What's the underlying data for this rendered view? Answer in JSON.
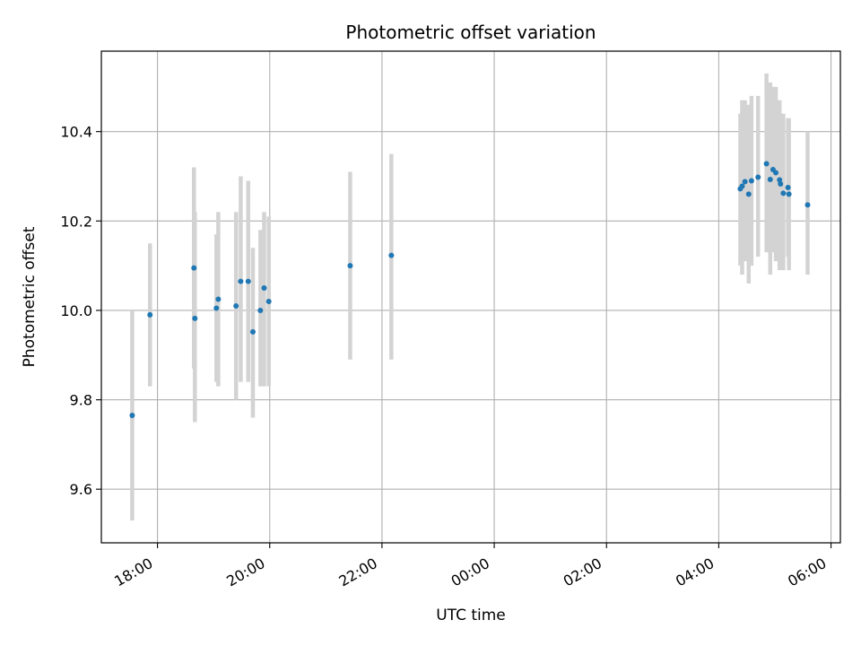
{
  "chart_data": {
    "type": "scatter",
    "title": "Photometric offset variation",
    "xlabel": "UTC time",
    "ylabel": "Photometric offset",
    "x_axis": {
      "kind": "time",
      "start": "17:00",
      "end": "30:10",
      "ticks": [
        "18:00",
        "20:00",
        "22:00",
        "00:00",
        "02:00",
        "04:00",
        "06:00"
      ],
      "tick_hours": [
        18,
        20,
        22,
        24,
        26,
        28,
        30
      ]
    },
    "y_axis": {
      "ylim": [
        9.48,
        10.58
      ],
      "ticks": [
        "9.6",
        "9.8",
        "10.0",
        "10.2",
        "10.4"
      ],
      "tick_values": [
        9.6,
        9.8,
        10.0,
        10.2,
        10.4
      ]
    },
    "grid": true,
    "colors": {
      "point": "#1f77b4",
      "errorbar": "#d3d3d3",
      "grid": "#b0b0b0"
    },
    "points": [
      {
        "t": "17:33",
        "y": 9.765,
        "lo": 9.53,
        "hi": 10.0
      },
      {
        "t": "17:52",
        "y": 9.99,
        "lo": 9.83,
        "hi": 10.15
      },
      {
        "t": "18:39",
        "y": 10.095,
        "lo": 9.87,
        "hi": 10.32
      },
      {
        "t": "18:40",
        "y": 9.982,
        "lo": 9.75,
        "hi": 10.22
      },
      {
        "t": "19:03",
        "y": 10.005,
        "lo": 9.84,
        "hi": 10.17
      },
      {
        "t": "19:05",
        "y": 10.025,
        "lo": 9.83,
        "hi": 10.22
      },
      {
        "t": "19:24",
        "y": 10.01,
        "lo": 9.8,
        "hi": 10.22
      },
      {
        "t": "19:29",
        "y": 10.065,
        "lo": 9.84,
        "hi": 10.3
      },
      {
        "t": "19:37",
        "y": 10.065,
        "lo": 9.84,
        "hi": 10.29
      },
      {
        "t": "19:42",
        "y": 9.952,
        "lo": 9.76,
        "hi": 10.14
      },
      {
        "t": "19:50",
        "y": 10.0,
        "lo": 9.83,
        "hi": 10.18
      },
      {
        "t": "19:54",
        "y": 10.05,
        "lo": 9.83,
        "hi": 10.22
      },
      {
        "t": "19:59",
        "y": 10.02,
        "lo": 9.83,
        "hi": 10.21
      },
      {
        "t": "21:26",
        "y": 10.1,
        "lo": 9.89,
        "hi": 10.31
      },
      {
        "t": "22:10",
        "y": 10.123,
        "lo": 9.89,
        "hi": 10.35
      },
      {
        "t": "28:23",
        "y": 10.272,
        "lo": 10.1,
        "hi": 10.44
      },
      {
        "t": "28:25",
        "y": 10.278,
        "lo": 10.08,
        "hi": 10.47
      },
      {
        "t": "28:28",
        "y": 10.288,
        "lo": 10.11,
        "hi": 10.47
      },
      {
        "t": "28:32",
        "y": 10.26,
        "lo": 10.06,
        "hi": 10.46
      },
      {
        "t": "28:35",
        "y": 10.29,
        "lo": 10.1,
        "hi": 10.48
      },
      {
        "t": "28:42",
        "y": 10.298,
        "lo": 10.12,
        "hi": 10.48
      },
      {
        "t": "28:51",
        "y": 10.328,
        "lo": 10.13,
        "hi": 10.53
      },
      {
        "t": "28:55",
        "y": 10.293,
        "lo": 10.08,
        "hi": 10.51
      },
      {
        "t": "28:58",
        "y": 10.315,
        "lo": 10.13,
        "hi": 10.5
      },
      {
        "t": "29:01",
        "y": 10.308,
        "lo": 10.11,
        "hi": 10.5
      },
      {
        "t": "29:05",
        "y": 10.292,
        "lo": 10.09,
        "hi": 10.47
      },
      {
        "t": "29:06",
        "y": 10.283,
        "lo": 10.1,
        "hi": 10.44
      },
      {
        "t": "29:09",
        "y": 10.262,
        "lo": 10.09,
        "hi": 10.44
      },
      {
        "t": "29:14",
        "y": 10.275,
        "lo": 10.12,
        "hi": 10.43
      },
      {
        "t": "29:15",
        "y": 10.26,
        "lo": 10.09,
        "hi": 10.43
      },
      {
        "t": "29:35",
        "y": 10.236,
        "lo": 10.08,
        "hi": 10.4
      }
    ]
  }
}
